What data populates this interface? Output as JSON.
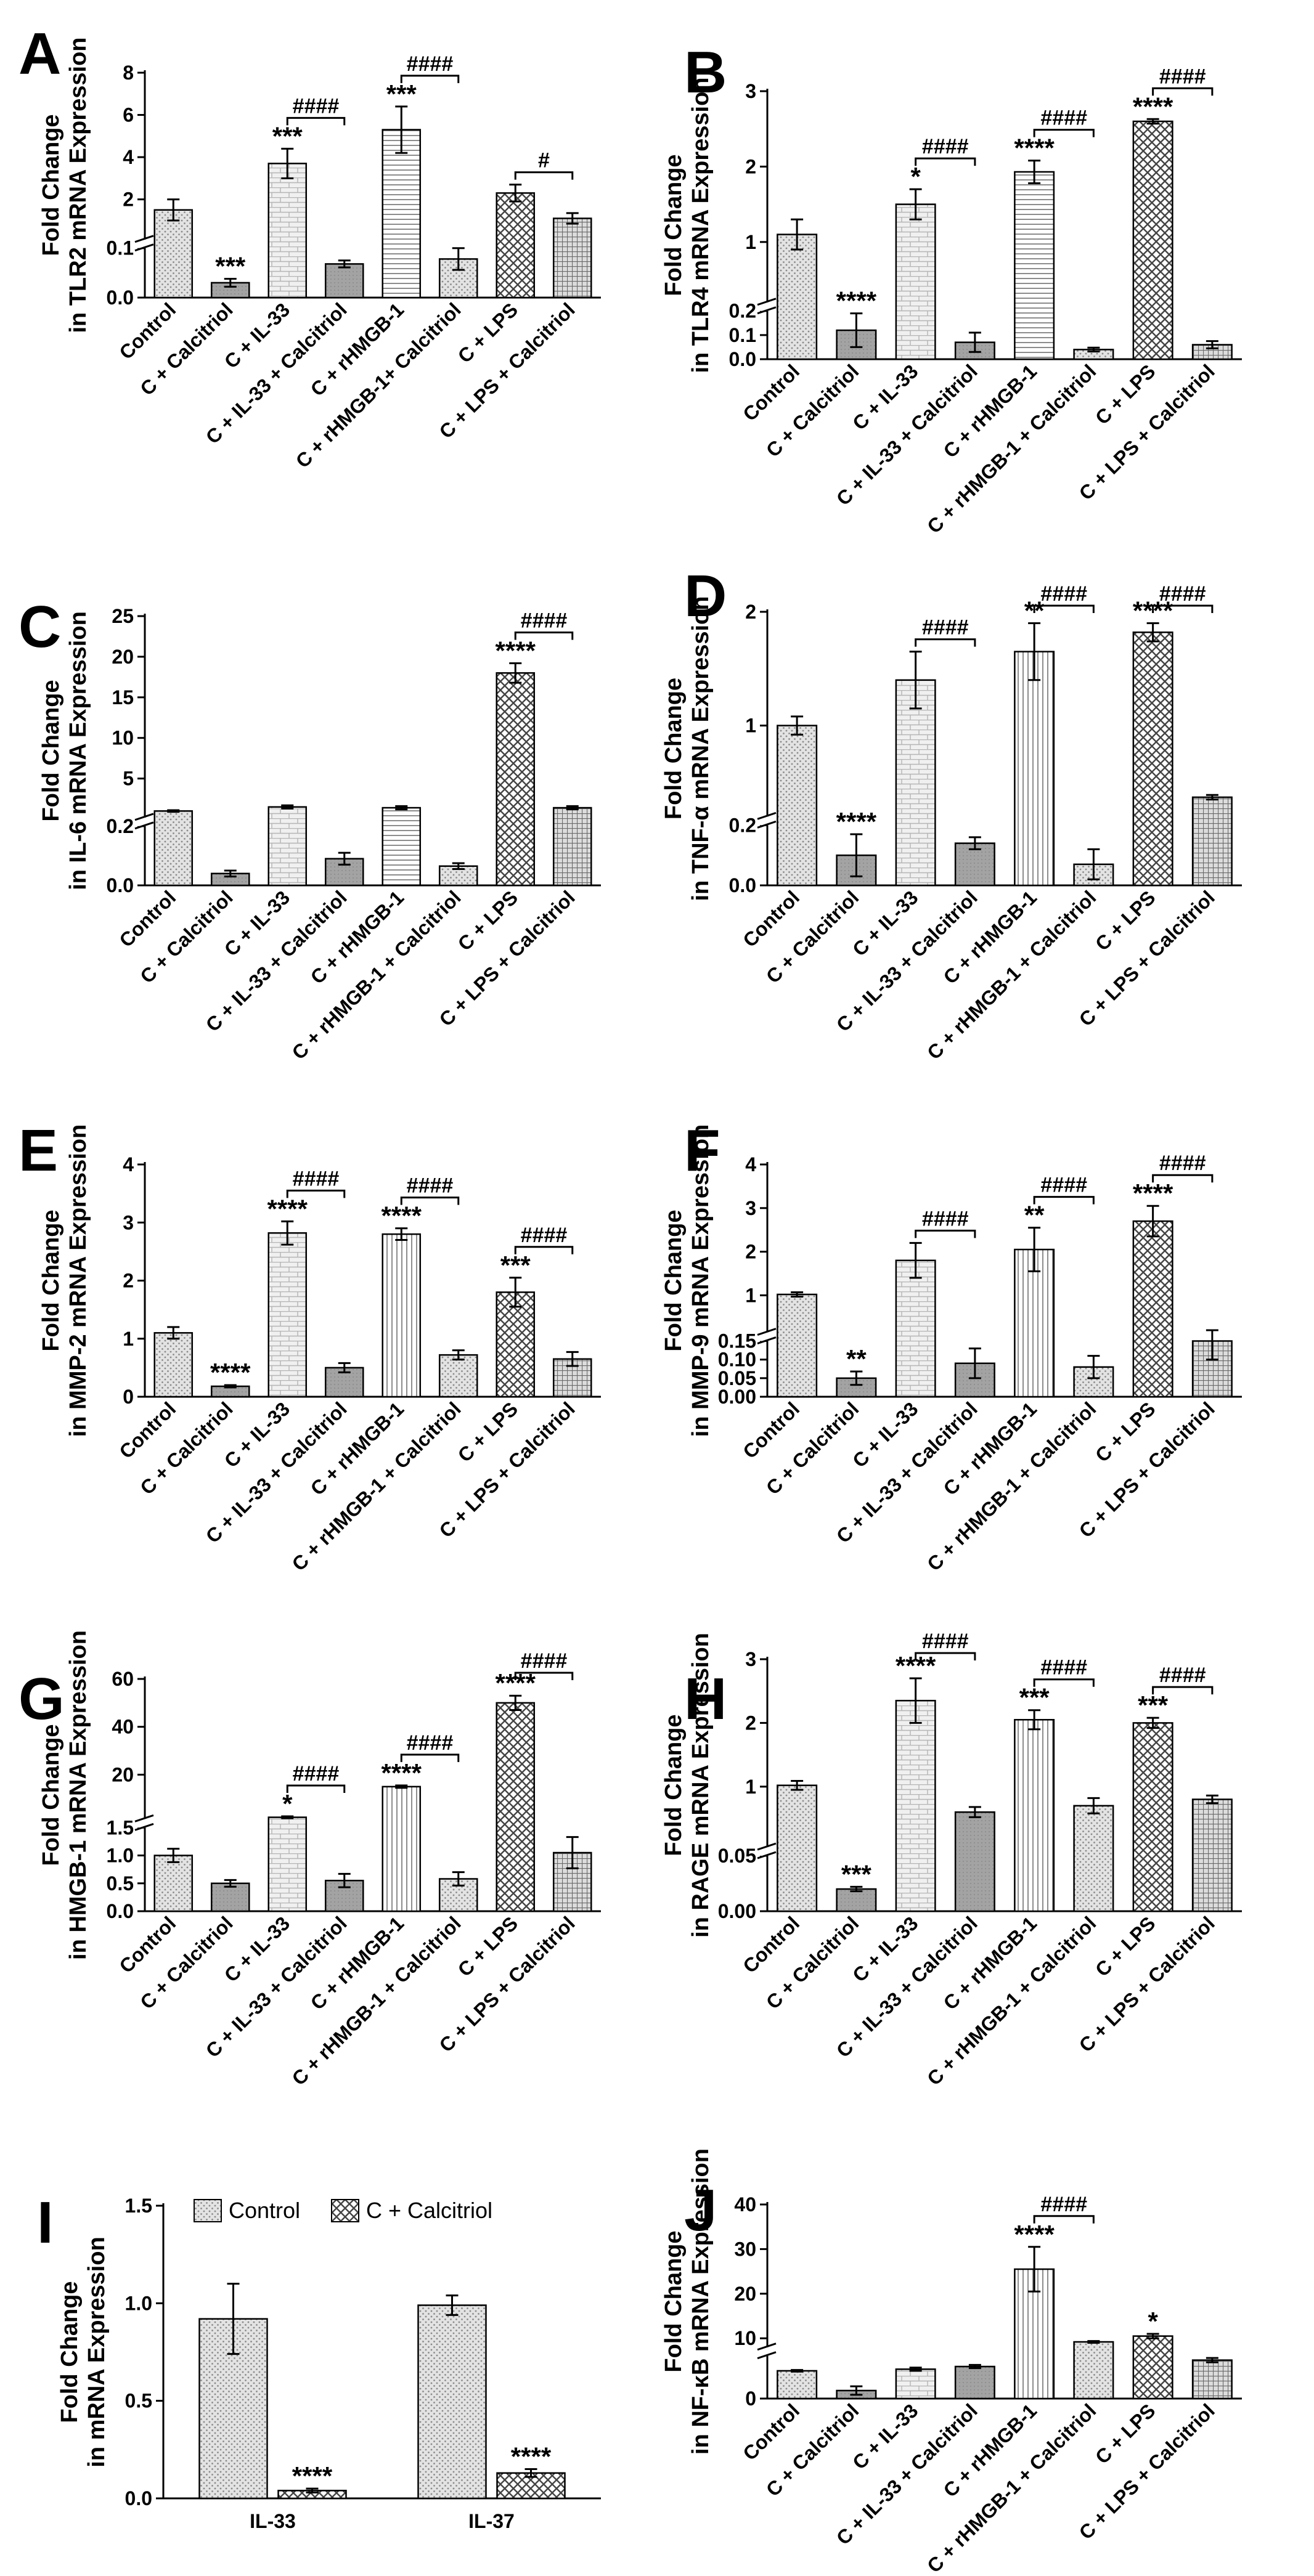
{
  "chart_data": [
    {
      "id": "A",
      "panel_label": "A",
      "type": "bar",
      "ylabel": [
        "Fold Change",
        "in TLR2 mRNA Expression"
      ],
      "categories": [
        "Control",
        "C + Calcitriol",
        "C + IL-33",
        "C + IL-33 + Calcitriol",
        "C + rHMGB-1",
        "C + rHMGB-1+ Calcitriol",
        "C + LPS",
        "C + LPS + Calcitriol"
      ],
      "segments": [
        {
          "min": 0.0,
          "max": 0.1,
          "ticks": [
            0.0,
            0.1
          ],
          "tick_labels": [
            "0.0",
            "0.1"
          ]
        },
        {
          "min": 0.1,
          "max": 8,
          "ticks": [
            2,
            4,
            6,
            8
          ],
          "tick_labels": [
            "2",
            "4",
            "6",
            "8"
          ]
        }
      ],
      "values": [
        1.5,
        0.03,
        3.7,
        0.068,
        5.3,
        0.078,
        2.3,
        1.1
      ],
      "errors": [
        0.5,
        0.008,
        0.7,
        0.007,
        1.1,
        0.022,
        0.4,
        0.25
      ],
      "patterns": [
        "dots",
        "grey",
        "brick",
        "grey",
        "hlines",
        "dots",
        "diamond",
        "grid"
      ],
      "stars": [
        "",
        "***",
        "***",
        "",
        "***",
        "",
        "",
        ""
      ],
      "brackets": [
        {
          "from": 2,
          "to": 3,
          "label": "####"
        },
        {
          "from": 4,
          "to": 5,
          "label": "####"
        },
        {
          "from": 6,
          "to": 7,
          "label": "#"
        }
      ]
    },
    {
      "id": "B",
      "panel_label": "B",
      "type": "bar",
      "ylabel": [
        "Fold Change",
        "in TLR4 mRNA Expression"
      ],
      "categories": [
        "Control",
        "C + Calcitriol",
        "C + IL-33",
        "C + IL-33 + Calcitriol",
        "C + rHMGB-1",
        "C + rHMGB-1 + Calcitriol",
        "C + LPS",
        "C + LPS + Calcitriol"
      ],
      "segments": [
        {
          "min": 0.0,
          "max": 0.2,
          "ticks": [
            0.0,
            0.1,
            0.2
          ],
          "tick_labels": [
            "0.0",
            "0.1",
            "0.2"
          ]
        },
        {
          "min": 0.2,
          "max": 3,
          "ticks": [
            1,
            2,
            3
          ],
          "tick_labels": [
            "1",
            "2",
            "3"
          ]
        }
      ],
      "values": [
        1.1,
        0.12,
        1.5,
        0.07,
        1.93,
        0.04,
        2.6,
        0.06
      ],
      "errors": [
        0.2,
        0.07,
        0.2,
        0.04,
        0.15,
        0.008,
        0.03,
        0.015
      ],
      "patterns": [
        "dots",
        "grey",
        "brick",
        "grey",
        "hlines",
        "dots",
        "diamond",
        "grid"
      ],
      "stars": [
        "",
        "****",
        "*",
        "",
        "****",
        "",
        "****",
        ""
      ],
      "brackets": [
        {
          "from": 2,
          "to": 3,
          "label": "####"
        },
        {
          "from": 4,
          "to": 5,
          "label": "####"
        },
        {
          "from": 6,
          "to": 7,
          "label": "####"
        }
      ]
    },
    {
      "id": "C",
      "panel_label": "C",
      "type": "bar",
      "ylabel": [
        "Fold Change",
        "in IL-6 mRNA Expression"
      ],
      "categories": [
        "Control",
        "C + Calcitriol",
        "C + IL-33",
        "C + IL-33 + Calcitriol",
        "C + rHMGB-1",
        "C + rHMGB-1 + Calcitriol",
        "C + LPS",
        "C + LPS + Calcitriol"
      ],
      "segments": [
        {
          "min": 0.0,
          "max": 0.2,
          "ticks": [
            0.0,
            0.2
          ],
          "tick_labels": [
            "0.0",
            "0.2"
          ]
        },
        {
          "min": 0.2,
          "max": 25,
          "ticks": [
            5,
            10,
            15,
            20,
            25
          ],
          "tick_labels": [
            "5",
            "10",
            "15",
            "20",
            "25"
          ]
        }
      ],
      "values": [
        1.0,
        0.04,
        1.5,
        0.09,
        1.4,
        0.065,
        18.0,
        1.4
      ],
      "errors": [
        0.1,
        0.01,
        0.2,
        0.02,
        0.2,
        0.01,
        1.2,
        0.2
      ],
      "patterns": [
        "dots",
        "grey",
        "brick",
        "grey",
        "hlines",
        "dots",
        "diamond",
        "grid"
      ],
      "stars": [
        "",
        "",
        "",
        "",
        "",
        "",
        "****",
        ""
      ],
      "brackets": [
        {
          "from": 6,
          "to": 7,
          "label": "####"
        }
      ]
    },
    {
      "id": "D",
      "panel_label": "D",
      "type": "bar",
      "ylabel": [
        "Fold Change",
        "in TNF-α mRNA Expression"
      ],
      "categories": [
        "Control",
        "C + Calcitriol",
        "C + IL-33",
        "C + IL-33 + Calcitriol",
        "C + rHMGB-1",
        "C + rHMGB-1 + Calcitriol",
        "C + LPS",
        "C + LPS + Calcitriol"
      ],
      "segments": [
        {
          "min": 0.0,
          "max": 0.2,
          "ticks": [
            0.0,
            0.2
          ],
          "tick_labels": [
            "0.0",
            "0.2"
          ]
        },
        {
          "min": 0.2,
          "max": 2,
          "ticks": [
            1,
            2
          ],
          "tick_labels": [
            "1",
            "2"
          ]
        }
      ],
      "values": [
        1.0,
        0.1,
        1.4,
        0.14,
        1.65,
        0.07,
        1.82,
        0.37
      ],
      "errors": [
        0.08,
        0.07,
        0.25,
        0.02,
        0.25,
        0.05,
        0.08,
        0.02
      ],
      "patterns": [
        "dots",
        "grey",
        "brick",
        "grey",
        "vlines",
        "dots",
        "diamond",
        "grid"
      ],
      "stars": [
        "",
        "****",
        "",
        "",
        "**",
        "",
        "****",
        ""
      ],
      "brackets": [
        {
          "from": 2,
          "to": 3,
          "label": "####"
        },
        {
          "from": 4,
          "to": 5,
          "label": "####"
        },
        {
          "from": 6,
          "to": 7,
          "label": "####"
        }
      ]
    },
    {
      "id": "E",
      "panel_label": "E",
      "type": "bar",
      "ylabel": [
        "Fold Change",
        "in MMP-2 mRNA Expression"
      ],
      "categories": [
        "Control",
        "C + Calcitriol",
        "C + IL-33",
        "C + IL-33 + Calcitriol",
        "C + rHMGB-1",
        "C + rHMGB-1 + Calcitriol",
        "C + LPS",
        "C + LPS + Calcitriol"
      ],
      "segments": [
        {
          "min": 0,
          "max": 4,
          "ticks": [
            0,
            1,
            2,
            3,
            4
          ],
          "tick_labels": [
            "0",
            "1",
            "2",
            "3",
            "4"
          ]
        }
      ],
      "values": [
        1.1,
        0.18,
        2.82,
        0.5,
        2.8,
        0.72,
        1.8,
        0.65
      ],
      "errors": [
        0.1,
        0.02,
        0.2,
        0.08,
        0.1,
        0.08,
        0.25,
        0.12
      ],
      "patterns": [
        "dots",
        "grey",
        "brick",
        "grey",
        "vlines",
        "dots",
        "diamond",
        "grid"
      ],
      "stars": [
        "",
        "****",
        "****",
        "",
        "****",
        "",
        "***",
        ""
      ],
      "brackets": [
        {
          "from": 2,
          "to": 3,
          "label": "####"
        },
        {
          "from": 4,
          "to": 5,
          "label": "####"
        },
        {
          "from": 6,
          "to": 7,
          "label": "####"
        }
      ]
    },
    {
      "id": "F",
      "panel_label": "F",
      "type": "bar",
      "ylabel": [
        "Fold Change",
        "in MMP-9 mRNA Expression"
      ],
      "categories": [
        "Control",
        "C + Calcitriol",
        "C + IL-33",
        "C + IL-33 + Calcitriol",
        "C + rHMGB-1",
        "C + rHMGB-1 + Calcitriol",
        "C + LPS",
        "C + LPS + Calcitriol"
      ],
      "segments": [
        {
          "min": 0.0,
          "max": 0.15,
          "ticks": [
            0.0,
            0.05,
            0.1,
            0.15
          ],
          "tick_labels": [
            "0.00",
            "0.05",
            "0.10",
            "0.15"
          ]
        },
        {
          "min": 0.15,
          "max": 4,
          "ticks": [
            1,
            2,
            3,
            4
          ],
          "tick_labels": [
            "1",
            "2",
            "3",
            "4"
          ]
        }
      ],
      "values": [
        1.02,
        0.05,
        1.8,
        0.09,
        2.05,
        0.08,
        2.7,
        0.15
      ],
      "errors": [
        0.05,
        0.018,
        0.4,
        0.04,
        0.5,
        0.03,
        0.35,
        0.05
      ],
      "patterns": [
        "dots",
        "grey",
        "brick",
        "grey",
        "vlines",
        "dots",
        "diamond",
        "grid"
      ],
      "stars": [
        "",
        "**",
        "",
        "",
        "**",
        "",
        "****",
        ""
      ],
      "brackets": [
        {
          "from": 2,
          "to": 3,
          "label": "####"
        },
        {
          "from": 4,
          "to": 5,
          "label": "####"
        },
        {
          "from": 6,
          "to": 7,
          "label": "####"
        }
      ]
    },
    {
      "id": "G",
      "panel_label": "G",
      "type": "bar",
      "ylabel": [
        "Fold Change",
        "in HMGB-1 mRNA Expression"
      ],
      "categories": [
        "Control",
        "C + Calcitriol",
        "C + IL-33",
        "C + IL-33 + Calcitriol",
        "C + rHMGB-1",
        "C + rHMGB-1 + Calcitriol",
        "C + LPS",
        "C + LPS + Calcitriol"
      ],
      "segments": [
        {
          "min": 0.0,
          "max": 1.5,
          "ticks": [
            0.0,
            0.5,
            1.0,
            1.5
          ],
          "tick_labels": [
            "0.0",
            "0.5",
            "1.0",
            "1.5"
          ]
        },
        {
          "min": 1.5,
          "max": 60,
          "ticks": [
            20,
            40,
            60
          ],
          "tick_labels": [
            "20",
            "40",
            "60"
          ]
        }
      ],
      "values": [
        1.0,
        0.5,
        2.2,
        0.55,
        15.0,
        0.58,
        50.0,
        1.05
      ],
      "errors": [
        0.12,
        0.06,
        0.4,
        0.12,
        0.5,
        0.12,
        3.0,
        0.28
      ],
      "patterns": [
        "dots",
        "grey",
        "brick",
        "grey",
        "vlines",
        "dots",
        "diamond",
        "grid"
      ],
      "stars": [
        "",
        "",
        "*",
        "",
        "****",
        "",
        "****",
        ""
      ],
      "brackets": [
        {
          "from": 2,
          "to": 3,
          "label": "####"
        },
        {
          "from": 4,
          "to": 5,
          "label": "####"
        },
        {
          "from": 6,
          "to": 7,
          "label": "####"
        }
      ]
    },
    {
      "id": "H",
      "panel_label": "H",
      "type": "bar",
      "ylabel": [
        "Fold Change",
        "in RAGE mRNA Expression"
      ],
      "categories": [
        "Control",
        "C + Calcitriol",
        "C + IL-33",
        "C + IL-33 + Calcitriol",
        "C + rHMGB-1",
        "C + rHMGB-1 + Calcitriol",
        "C + LPS",
        "C + LPS + Calcitriol"
      ],
      "segments": [
        {
          "min": 0.0,
          "max": 0.05,
          "ticks": [
            0.0,
            0.05
          ],
          "tick_labels": [
            "0.00",
            "0.05"
          ]
        },
        {
          "min": 0.05,
          "max": 3,
          "ticks": [
            1,
            2,
            3
          ],
          "tick_labels": [
            "1",
            "2",
            "3"
          ]
        }
      ],
      "values": [
        1.02,
        0.02,
        2.35,
        0.6,
        2.05,
        0.7,
        2.0,
        0.8
      ],
      "errors": [
        0.07,
        0.002,
        0.35,
        0.08,
        0.15,
        0.12,
        0.08,
        0.06
      ],
      "patterns": [
        "dots",
        "grey",
        "brick",
        "grey",
        "vlines",
        "dots",
        "diamond",
        "grid"
      ],
      "stars": [
        "",
        "***",
        "****",
        "",
        "***",
        "",
        "***",
        ""
      ],
      "brackets": [
        {
          "from": 2,
          "to": 3,
          "label": "####"
        },
        {
          "from": 4,
          "to": 5,
          "label": "####"
        },
        {
          "from": 6,
          "to": 7,
          "label": "####"
        }
      ]
    },
    {
      "id": "I",
      "panel_label": "I",
      "type": "grouped-bar",
      "ylabel": [
        "Fold Change",
        "in mRNA Expression"
      ],
      "groups": [
        "IL-33",
        "IL-37"
      ],
      "series": [
        {
          "name": "Control",
          "values": [
            0.92,
            0.99
          ],
          "errors": [
            0.18,
            0.05
          ],
          "pattern": "dots"
        },
        {
          "name": "C + Calcitriol",
          "values": [
            0.04,
            0.13
          ],
          "errors": [
            0.01,
            0.02
          ],
          "pattern": "diamond"
        }
      ],
      "stars": [
        [
          "",
          "****"
        ],
        [
          "",
          "****"
        ]
      ],
      "segments": [
        {
          "min": 0.0,
          "max": 1.5,
          "ticks": [
            0.0,
            0.5,
            1.0,
            1.5
          ],
          "tick_labels": [
            "0.0",
            "0.5",
            "1.0",
            "1.5"
          ]
        }
      ],
      "legend": "top"
    },
    {
      "id": "J",
      "panel_label": "J",
      "type": "bar",
      "ylabel": [
        "Fold Change",
        "in NF-κB mRNA Expression"
      ],
      "categories": [
        "Control",
        "C + Calcitriol",
        "C + IL-33",
        "C + IL-33 + Calcitriol",
        "C + rHMGB-1",
        "C + rHMGB-1 + Calcitriol",
        "C + LPS",
        "C + LPS + Calcitriol"
      ],
      "segments": [
        {
          "min": 0,
          "max": 8,
          "ticks": [
            0
          ],
          "tick_labels": [
            "0"
          ]
        },
        {
          "min": 8,
          "max": 40,
          "ticks": [
            10,
            20,
            30,
            40
          ],
          "tick_labels": [
            "10",
            "20",
            "30",
            "40"
          ]
        }
      ],
      "values": [
        5.2,
        1.5,
        5.5,
        6.0,
        25.5,
        9.2,
        10.5,
        7.2
      ],
      "errors": [
        0.15,
        0.8,
        0.3,
        0.3,
        5.0,
        0.2,
        0.5,
        0.4
      ],
      "patterns": [
        "dots",
        "grey",
        "brick",
        "grey",
        "vlines",
        "dots",
        "diamond",
        "grid"
      ],
      "stars": [
        "",
        "",
        "",
        "",
        "****",
        "",
        "*",
        ""
      ],
      "brackets": [
        {
          "from": 4,
          "to": 5,
          "label": "####"
        }
      ]
    }
  ]
}
